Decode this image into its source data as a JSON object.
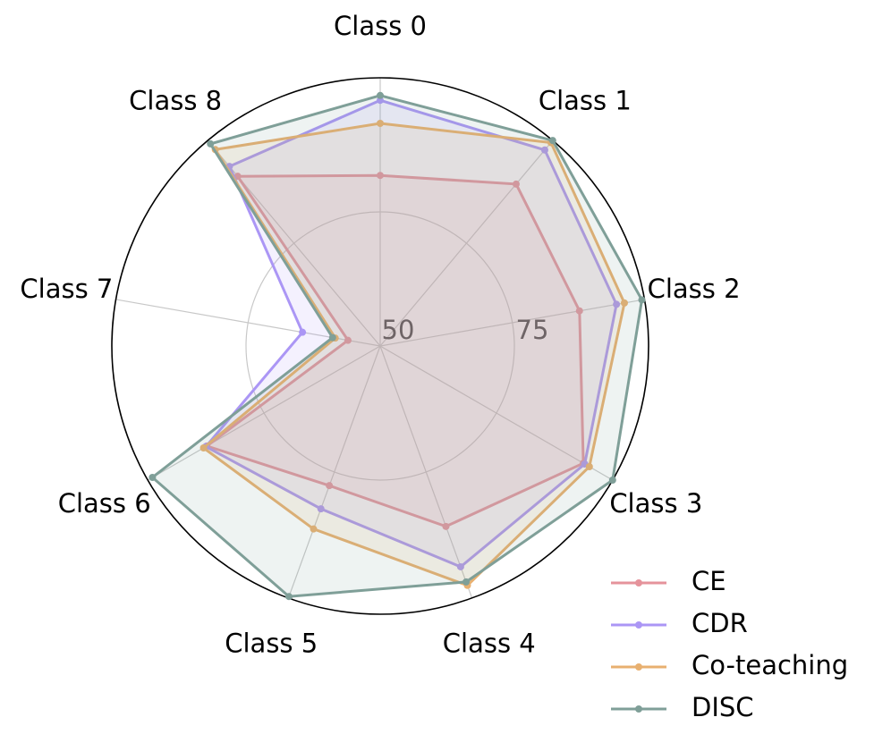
{
  "chart_data": {
    "type": "radar",
    "categories": [
      "Class 0",
      "Class 1",
      "Class 2",
      "Class 3",
      "Class 4",
      "Class 5",
      "Class 6",
      "Class 7",
      "Class 8"
    ],
    "ylim": [
      50,
      100
    ],
    "yticks": [
      50,
      75
    ],
    "legend": "lower right",
    "series": [
      {
        "name": "CE",
        "color": "#e5939b",
        "values": [
          81.8,
          89.4,
          87.7,
          93.7,
          85.8,
          77.7,
          87.3,
          56.1,
          91.3
        ]
      },
      {
        "name": "CDR",
        "color": "#ab96f5",
        "values": [
          95.8,
          97.7,
          94.7,
          94.0,
          93.8,
          82.3,
          87.5,
          64.7,
          93.7
        ]
      },
      {
        "name": "Co-teaching",
        "color": "#e8b070",
        "values": [
          91.5,
          99.5,
          96.2,
          95.0,
          97.5,
          86.3,
          88.0,
          58.5,
          97.8
        ]
      },
      {
        "name": "DISC",
        "color": "#7f9f98",
        "values": [
          96.7,
          100,
          99.5,
          100,
          96.8,
          99.7,
          99.0,
          59.0,
          99.2
        ]
      }
    ]
  }
}
